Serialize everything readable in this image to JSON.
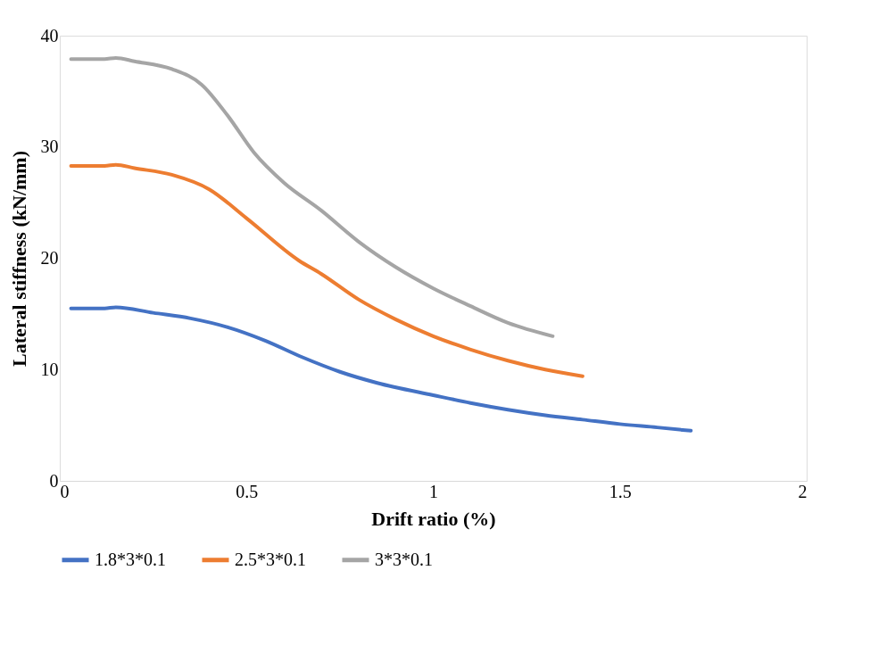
{
  "chart_data": {
    "type": "line",
    "xlabel": "Drift ratio (%)",
    "ylabel": "Lateral stiffness (kN/mm)",
    "xlim": [
      0,
      2
    ],
    "xticks": [
      0,
      0.5,
      1,
      1.5,
      2
    ],
    "ylim": [
      0,
      40
    ],
    "yticks": [
      0,
      10,
      20,
      30,
      40
    ],
    "grid": false,
    "legend": "bottom",
    "marker": "none",
    "line_style": "solid",
    "series": [
      {
        "name": "1.8*3*0.1",
        "color": "#4472c4",
        "x": [
          0.03,
          0.12,
          0.15,
          0.25,
          0.35,
          0.45,
          0.55,
          0.65,
          0.75,
          0.85,
          1.0,
          1.1,
          1.2,
          1.3,
          1.4,
          1.5,
          1.6,
          1.69
        ],
        "values": [
          15.5,
          15.5,
          15.6,
          15.1,
          14.6,
          13.8,
          12.6,
          11.1,
          9.8,
          8.8,
          7.7,
          7.0,
          6.4,
          5.9,
          5.5,
          5.1,
          4.8,
          4.5
        ]
      },
      {
        "name": "2.5*3*0.1",
        "color": "#ed7d31",
        "x": [
          0.03,
          0.12,
          0.15,
          0.2,
          0.3,
          0.4,
          0.5,
          0.64,
          0.7,
          0.8,
          0.9,
          1.0,
          1.1,
          1.2,
          1.3,
          1.4
        ],
        "values": [
          28.3,
          28.3,
          28.4,
          28.1,
          27.5,
          26.2,
          23.6,
          19.8,
          18.6,
          16.3,
          14.5,
          13.0,
          11.8,
          10.8,
          10.0,
          9.4
        ]
      },
      {
        "name": "3*3*0.1",
        "color": "#a5a5a5",
        "x": [
          0.03,
          0.12,
          0.15,
          0.2,
          0.3,
          0.38,
          0.45,
          0.52,
          0.6,
          0.7,
          0.8,
          0.9,
          1.0,
          1.1,
          1.2,
          1.32
        ],
        "values": [
          37.9,
          37.9,
          38.0,
          37.7,
          37.0,
          35.6,
          32.8,
          29.5,
          26.8,
          24.3,
          21.5,
          19.2,
          17.3,
          15.7,
          14.2,
          13.0
        ]
      }
    ]
  }
}
